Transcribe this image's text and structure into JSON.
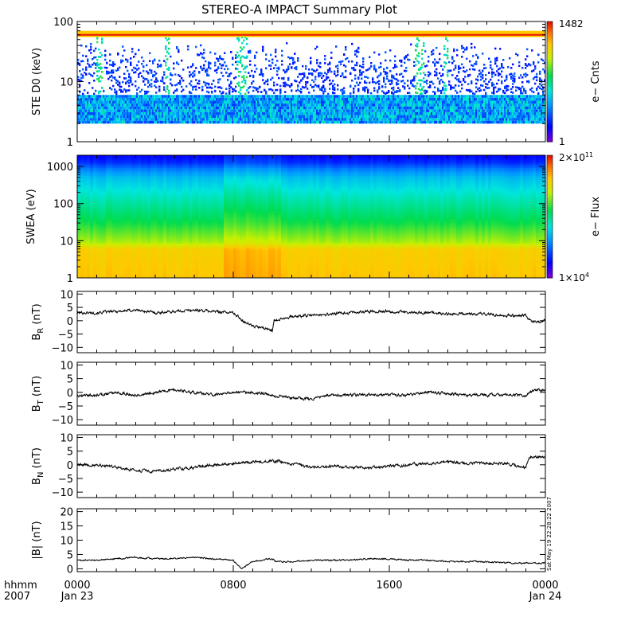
{
  "title": "STEREO-A IMPACT Summary Plot",
  "footer": {
    "axis_label_top": "hhmm",
    "axis_label_bottom": "2007",
    "ticks": [
      {
        "time": "0000",
        "date": "Jan 23",
        "hour": 0
      },
      {
        "time": "0800",
        "date": "",
        "hour": 8
      },
      {
        "time": "1600",
        "date": "",
        "hour": 16
      },
      {
        "time": "0000",
        "date": "Jan 24",
        "hour": 24
      }
    ]
  },
  "timestamp": "Sat May 19 22:28:22 2007",
  "chart_data": [
    {
      "id": "ste",
      "type": "heatmap",
      "ylabel": "STE D0 (keV)",
      "yscale": "log",
      "ylim": [
        1,
        100
      ],
      "yticks": [
        {
          "v": 1,
          "t": "1"
        },
        {
          "v": 10,
          "t": "10"
        },
        {
          "v": 100,
          "t": "100"
        }
      ],
      "colorbar": {
        "label": "e− Cnts",
        "max_label": "1482",
        "min_label": "1",
        "max": 1482,
        "min": 1,
        "scale": "log"
      },
      "background_band_keV": [
        2,
        6
      ],
      "saturated_band_keV": [
        55,
        70
      ],
      "enhanced_intervals_hours": [
        [
          1.0,
          1.3
        ],
        [
          4.5,
          4.7
        ],
        [
          8.2,
          8.7
        ],
        [
          17.3,
          17.8
        ],
        [
          18.8,
          19.0
        ]
      ],
      "xlim_hours": [
        0,
        24
      ]
    },
    {
      "id": "swea",
      "type": "heatmap",
      "ylabel": "SWEA (eV)",
      "yscale": "log",
      "ylim": [
        1,
        2000
      ],
      "yticks": [
        {
          "v": 1,
          "t": "1"
        },
        {
          "v": 10,
          "t": "10"
        },
        {
          "v": 100,
          "t": "100"
        },
        {
          "v": 1000,
          "t": "1000"
        }
      ],
      "colorbar": {
        "label": "e− Flux",
        "max_label": "2×10",
        "max_exp": "11",
        "min_label": "1×10",
        "min_exp": "4",
        "max": 200000000000.0,
        "min": 10000.0,
        "scale": "log"
      },
      "flux_profile": [
        {
          "energy_eV": 1,
          "level": 0.82
        },
        {
          "energy_eV": 6,
          "level": 0.8
        },
        {
          "energy_eV": 9,
          "level": 0.68
        },
        {
          "energy_eV": 30,
          "level": 0.56
        },
        {
          "energy_eV": 150,
          "level": 0.45
        },
        {
          "energy_eV": 500,
          "level": 0.36
        },
        {
          "energy_eV": 900,
          "level": 0.26
        },
        {
          "energy_eV": 1300,
          "level": 0.17
        },
        {
          "energy_eV": 2000,
          "level": 0.12
        }
      ],
      "xlim_hours": [
        0,
        24
      ]
    },
    {
      "id": "br",
      "type": "line",
      "ylabel": "B",
      "ylabel_sub": "R",
      "ylabel_unit": " (nT)",
      "ylim": [
        -12,
        11
      ],
      "yticks": [
        {
          "v": 10,
          "t": "10"
        },
        {
          "v": 5,
          "t": "5"
        },
        {
          "v": 0,
          "t": "0"
        },
        {
          "v": -5,
          "t": "−5"
        },
        {
          "v": -10,
          "t": "−10"
        }
      ],
      "x": [
        0,
        1,
        2,
        3,
        4,
        5,
        6,
        7,
        8,
        8.5,
        9,
        10,
        10.1,
        10.5,
        11,
        12,
        13,
        14,
        15,
        16,
        17,
        18,
        19,
        20,
        21,
        22,
        23,
        23.3,
        24
      ],
      "values": [
        3,
        3,
        3.5,
        4,
        3,
        3.5,
        4,
        3.5,
        3,
        0,
        -2,
        -3.5,
        0,
        1,
        1.5,
        2,
        2.5,
        3,
        3.5,
        3.5,
        3,
        3,
        2.5,
        2.5,
        2.5,
        2,
        2,
        -0.5,
        0
      ],
      "noise": 0.5,
      "xlim": [
        0,
        24
      ]
    },
    {
      "id": "bt",
      "type": "line",
      "ylabel": "B",
      "ylabel_sub": "T",
      "ylabel_unit": " (nT)",
      "ylim": [
        -12,
        11
      ],
      "yticks": [
        {
          "v": 10,
          "t": "10"
        },
        {
          "v": 5,
          "t": "5"
        },
        {
          "v": 0,
          "t": "0"
        },
        {
          "v": -5,
          "t": "−5"
        },
        {
          "v": -10,
          "t": "−10"
        }
      ],
      "x": [
        0,
        1,
        2,
        3,
        4,
        5,
        6,
        7,
        8,
        9,
        10,
        11,
        12,
        13,
        14,
        15,
        16,
        17,
        18,
        19,
        20,
        21,
        22,
        23,
        23.5,
        24
      ],
      "values": [
        -1,
        -1,
        0,
        -1,
        0,
        1,
        0,
        -1,
        0,
        0,
        -1,
        -2,
        -2.5,
        -1,
        -1,
        -1,
        -1,
        -1,
        0,
        -0.5,
        -1,
        -1,
        -1,
        -1,
        1,
        1
      ],
      "noise": 0.5,
      "xlim": [
        0,
        24
      ]
    },
    {
      "id": "bn",
      "type": "line",
      "ylabel": "B",
      "ylabel_sub": "N",
      "ylabel_unit": " (nT)",
      "ylim": [
        -12,
        11
      ],
      "yticks": [
        {
          "v": 10,
          "t": "10"
        },
        {
          "v": 5,
          "t": "5"
        },
        {
          "v": 0,
          "t": "0"
        },
        {
          "v": -5,
          "t": "−5"
        },
        {
          "v": -10,
          "t": "−10"
        }
      ],
      "x": [
        0,
        1,
        2,
        3,
        4,
        5,
        6,
        7,
        8,
        9,
        10,
        11,
        12,
        13,
        14,
        15,
        16,
        17,
        18,
        19,
        20,
        21,
        22,
        23,
        23.2,
        24
      ],
      "values": [
        0,
        0,
        -1,
        -2,
        -2.5,
        -1.5,
        -1,
        0,
        0.5,
        1,
        1.5,
        0.5,
        -1,
        -0.5,
        -1,
        -1,
        -0.5,
        0,
        0.5,
        1,
        0.5,
        0.5,
        0.5,
        -1,
        3,
        3
      ],
      "noise": 0.5,
      "xlim": [
        0,
        24
      ]
    },
    {
      "id": "bmag",
      "type": "line",
      "ylabel": "|B| (nT)",
      "ylim": [
        -1,
        21
      ],
      "yticks": [
        {
          "v": 20,
          "t": "20"
        },
        {
          "v": 15,
          "t": "15"
        },
        {
          "v": 10,
          "t": "10"
        },
        {
          "v": 5,
          "t": "5"
        },
        {
          "v": 0,
          "t": "0"
        }
      ],
      "x": [
        0,
        1,
        2,
        3,
        4,
        5,
        6,
        7,
        8,
        8.4,
        9,
        10,
        10.2,
        11,
        12,
        13,
        14,
        15,
        16,
        17,
        18,
        19,
        20,
        21,
        22,
        23,
        24
      ],
      "values": [
        3,
        3,
        3.5,
        4,
        3.5,
        3.5,
        4,
        3.5,
        3,
        0,
        2.5,
        3.5,
        2.5,
        2.5,
        3,
        3,
        3,
        3.5,
        3.5,
        3,
        3,
        2.5,
        2.5,
        2.5,
        2,
        2,
        2
      ],
      "noise": 0.25,
      "xlim": [
        0,
        24
      ]
    }
  ]
}
